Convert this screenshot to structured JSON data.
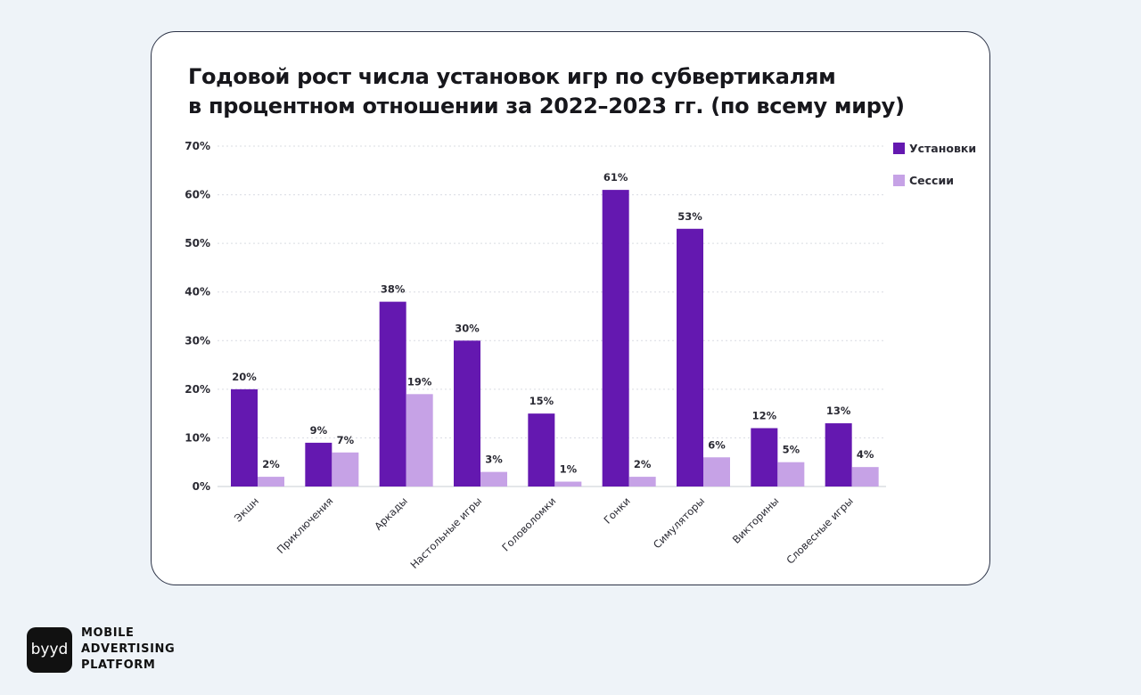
{
  "chart_data": {
    "type": "bar",
    "title_lines": [
      "Годовой рост числа установок игр по субвертикалям",
      "в процентном отношении за 2022–2023 гг. (по всему миру)"
    ],
    "categories": [
      "Экшн",
      "Приключения",
      "Аркады",
      "Настольные игры",
      "Головоломки",
      "Гонки",
      "Симуляторы",
      "Викторины",
      "Словесные игры"
    ],
    "series": [
      {
        "name": "Установки",
        "color": "#6418b0",
        "values": [
          20,
          9,
          38,
          30,
          15,
          61,
          53,
          12,
          13
        ],
        "labels": [
          "20%",
          "9%",
          "38%",
          "30%",
          "15%",
          "61%",
          "53%",
          "12%",
          "13%"
        ]
      },
      {
        "name": "Сессии",
        "color": "#c6a2e6",
        "values": [
          2,
          7,
          19,
          3,
          1,
          2,
          6,
          5,
          4
        ],
        "labels": [
          "2%",
          "7%",
          "19%",
          "3%",
          "1%",
          "2%",
          "6%",
          "5%",
          "4%"
        ]
      }
    ],
    "y_ticks": [
      0,
      10,
      20,
      30,
      40,
      50,
      60,
      70
    ],
    "y_tick_labels": [
      "0%",
      "10%",
      "20%",
      "30%",
      "40%",
      "50%",
      "60%",
      "70%"
    ],
    "ylim": [
      0,
      70
    ],
    "grid": true,
    "legend_position": "top-right"
  },
  "brand": {
    "logo_text": "byyd",
    "lines": [
      "MOBILE",
      "ADVERTISING",
      "PLATFORM"
    ]
  }
}
